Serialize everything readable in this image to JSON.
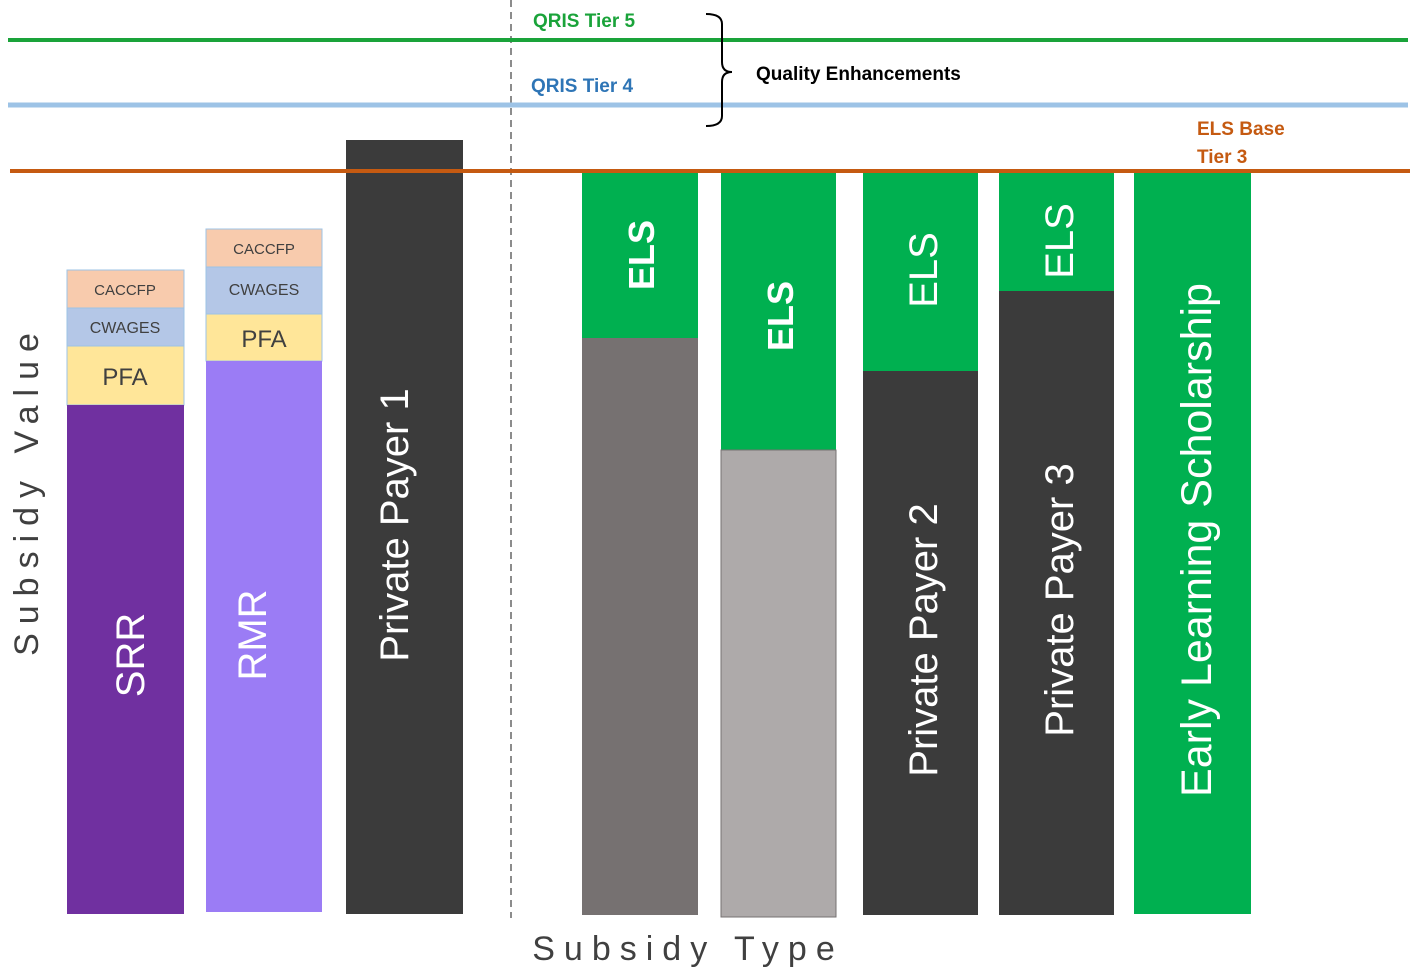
{
  "axes": {
    "x_label": "Subsidy Type",
    "y_label": "Subsidy Value"
  },
  "lines": {
    "tier5": {
      "label": "QRIS Tier 5",
      "color": "#1aa33a"
    },
    "tier4": {
      "label": "QRIS Tier 4",
      "color": "#2e75b6",
      "line_color": "#9dc3e6"
    },
    "els_base": {
      "label_1": "ELS Base",
      "label_2": "Tier 3",
      "color": "#c55a11"
    },
    "bracket_label": "Quality Enhancements"
  },
  "bars": {
    "srr": {
      "caccfp": "CACCFP",
      "cwages": "CWAGES",
      "pfa": "PFA",
      "main": "SRR"
    },
    "rmr": {
      "caccfp": "CACCFP",
      "cwages": "CWAGES",
      "pfa": "PFA",
      "main": "RMR"
    },
    "private1": {
      "main": "Private Payer 1"
    },
    "gray_dark": {
      "els": "ELS"
    },
    "gray_light": {
      "els": "ELS"
    },
    "private2": {
      "els": "ELS",
      "main": "Private Payer 2"
    },
    "private3": {
      "els": "ELS",
      "main": "Private Payer 3"
    },
    "els_scholarship": {
      "main": "Early Learning Scholarship"
    }
  },
  "colors": {
    "caccfp": "#f8cbad",
    "cwages": "#b4c7e7",
    "pfa": "#ffe699",
    "srr": "#7030a0",
    "rmr": "#9b7cf5",
    "dark": "#3b3b3b",
    "gray_dark": "#767171",
    "gray_light": "#aeaaaa",
    "els_green": "#00b050"
  }
}
